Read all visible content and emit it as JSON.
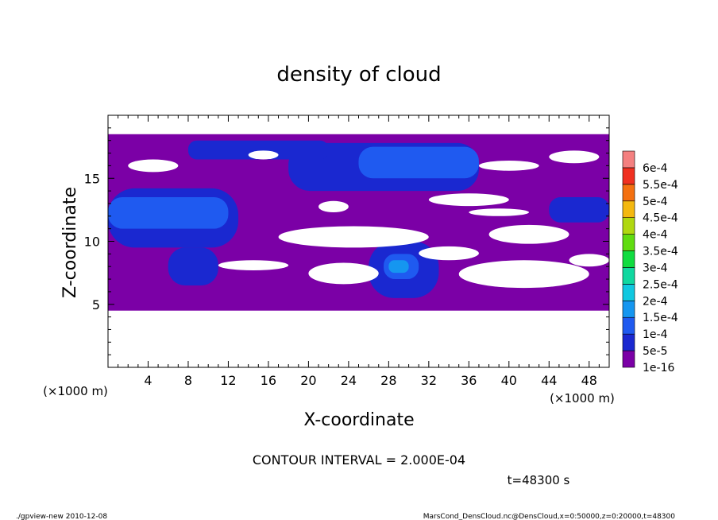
{
  "chart_data": {
    "type": "heatmap",
    "title": "density of cloud",
    "xlabel": "X-coordinate",
    "ylabel": "Z-coordinate",
    "x_unit": "(×1000 m)",
    "y_unit": "(×1000 m)",
    "xlim": [
      0,
      50
    ],
    "ylim": [
      0,
      20
    ],
    "x_ticks": [
      4,
      8,
      12,
      16,
      20,
      24,
      28,
      32,
      36,
      40,
      44,
      48
    ],
    "y_ticks": [
      5,
      10,
      15
    ],
    "grid": false,
    "legend_placement": "right",
    "colorbar": [
      {
        "label": "1e-16",
        "color": "#7b00a6"
      },
      {
        "label": "5e-5",
        "color": "#1a28d0"
      },
      {
        "label": "1e-4",
        "color": "#1f5af0"
      },
      {
        "label": "1.5e-4",
        "color": "#1596f0"
      },
      {
        "label": "2e-4",
        "color": "#10c8e0"
      },
      {
        "label": "2.5e-4",
        "color": "#10d8a0"
      },
      {
        "label": "3e-4",
        "color": "#10dc40"
      },
      {
        "label": "3.5e-4",
        "color": "#60dc10"
      },
      {
        "label": "4e-4",
        "color": "#b0d810"
      },
      {
        "label": "4.5e-4",
        "color": "#f4b810"
      },
      {
        "label": "5e-4",
        "color": "#f47010"
      },
      {
        "label": "5.5e-4",
        "color": "#f03020"
      },
      {
        "label": "6e-4",
        "color": "#f48080"
      }
    ],
    "cloud_layers": [
      {
        "level": "1e-16",
        "z_range": [
          4.5,
          18.5
        ],
        "description_regions": [
          [
            0,
            50,
            4.5,
            18.5
          ]
        ]
      },
      {
        "level": "5e-5",
        "regions": [
          [
            0,
            13,
            9.5,
            14.2
          ],
          [
            6,
            11,
            6.5,
            9.5
          ],
          [
            18,
            37,
            14,
            17.8
          ],
          [
            26,
            33,
            5.5,
            10
          ],
          [
            44,
            50,
            11.5,
            13.5
          ],
          [
            8,
            22,
            16.5,
            18
          ]
        ]
      },
      {
        "level": "1e-4",
        "regions": [
          [
            0,
            12,
            11,
            13.5
          ],
          [
            27.5,
            31,
            7,
            9
          ],
          [
            25,
            37,
            15,
            17.5
          ]
        ]
      },
      {
        "level": "1.5e-4",
        "regions": [
          [
            28,
            30,
            7.5,
            8.5
          ]
        ]
      }
    ],
    "clear_gaps": [
      [
        2,
        7,
        15.5,
        16.5
      ],
      [
        14,
        17,
        16.5,
        17.2
      ],
      [
        21,
        24,
        12.3,
        13.2
      ],
      [
        17,
        32,
        9.5,
        11.2
      ],
      [
        31,
        37,
        8.5,
        9.6
      ],
      [
        38,
        46,
        9.8,
        11.3
      ],
      [
        35,
        48,
        6.3,
        8.5
      ],
      [
        20,
        27,
        6.6,
        8.3
      ],
      [
        32,
        40,
        12.8,
        13.8
      ],
      [
        46,
        50,
        8.0,
        9.0
      ],
      [
        36,
        42,
        12.0,
        12.6
      ],
      [
        44,
        49,
        16.2,
        17.2
      ],
      [
        37,
        43,
        15.6,
        16.4
      ],
      [
        11,
        18,
        7.7,
        8.5
      ]
    ]
  },
  "annotations": {
    "contour_interval": "CONTOUR INTERVAL = 2.000E-04",
    "time": "t=48300 s",
    "footer_left": "./gpview-new   2010-12-08",
    "footer_right": "MarsCond_DensCloud.nc@DensCloud,x=0:50000,z=0:20000,t=48300"
  }
}
